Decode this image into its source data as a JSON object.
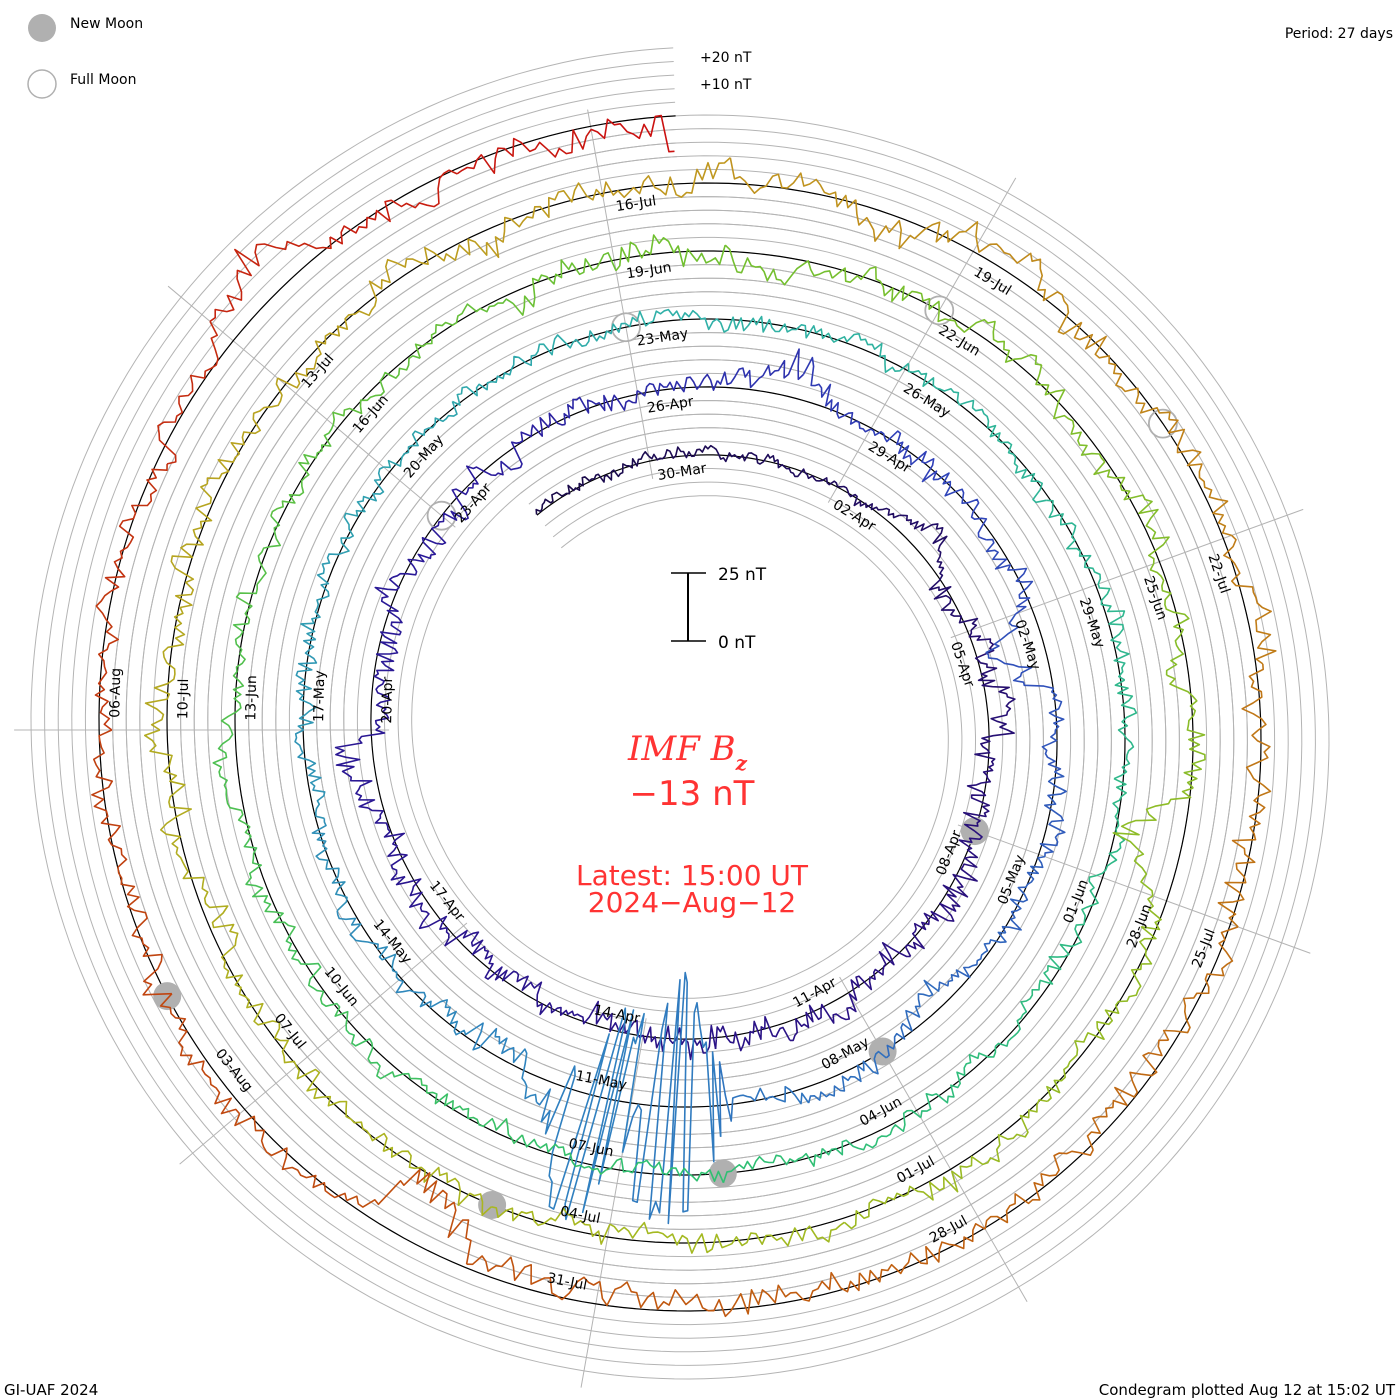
{
  "legend": {
    "new_moon_label": "New Moon",
    "full_moon_label": "Full Moon",
    "new_moon_color": "#b0b0b0",
    "full_moon_color": "#b0b0b0"
  },
  "period_label": "Period: 27 days",
  "credit": "GI-UAF 2024",
  "plotted": "Condegram plotted Aug 12 at 15:02 UT",
  "chart_data": {
    "type": "line",
    "subtype": "condegram-spiral",
    "title_main": "IMF B",
    "title_sub": "z",
    "latest_value": "−13 nT",
    "latest_time": "Latest: 15:00 UT",
    "latest_date": "2024−Aug−12",
    "period_days": 27,
    "start_date": "2024-03-28",
    "first_tick_date": "2024-03-30",
    "end": "2024-08-12 15:00",
    "units": "nT",
    "scale_bar": {
      "top_label": "25 nT",
      "bottom_label": "0 nT",
      "range": [
        0,
        25
      ]
    },
    "grid_labels": [
      "+20 nT",
      "+10 nT"
    ],
    "grid_step_nT": 5,
    "tick_interval_days": 3,
    "date_labels": [
      "30-Mar",
      "02-Apr",
      "05-Apr",
      "08-Apr",
      "11-Apr",
      "14-Apr",
      "17-Apr",
      "20-Apr",
      "23-Apr",
      "26-Apr",
      "29-Apr",
      "02-May",
      "05-May",
      "08-May",
      "11-May",
      "14-May",
      "17-May",
      "20-May",
      "23-May",
      "26-May",
      "29-May",
      "01-Jun",
      "04-Jun",
      "07-Jun",
      "10-Jun",
      "13-Jun",
      "16-Jun",
      "19-Jun",
      "22-Jun",
      "25-Jun",
      "28-Jun",
      "01-Jul",
      "04-Jul",
      "07-Jul",
      "10-Jul",
      "13-Jul",
      "16-Jul",
      "19-Jul",
      "22-Jul",
      "25-Jul",
      "28-Jul",
      "31-Jul",
      "03-Aug",
      "06-Aug"
    ],
    "new_moons_day_offset": [
      9,
      39,
      68,
      97,
      127
    ],
    "full_moons_day_offset": [
      24,
      54,
      84,
      113
    ],
    "color_stops": [
      {
        "day": -2,
        "color": "#1a0a4a"
      },
      {
        "day": 10,
        "color": "#2a1080"
      },
      {
        "day": 24,
        "color": "#2a1a9a"
      },
      {
        "day": 30,
        "color": "#3040b8"
      },
      {
        "day": 42,
        "color": "#3080c0"
      },
      {
        "day": 54,
        "color": "#30b0a8"
      },
      {
        "day": 68,
        "color": "#30c070"
      },
      {
        "day": 81,
        "color": "#70c030"
      },
      {
        "day": 96,
        "color": "#a8b820"
      },
      {
        "day": 108,
        "color": "#c09820"
      },
      {
        "day": 120,
        "color": "#c06010"
      },
      {
        "day": 128,
        "color": "#c04010"
      },
      {
        "day": 136,
        "color": "#cc0a10"
      }
    ],
    "activity_level_nT": [
      {
        "from_day": -2,
        "to_day": 5,
        "amp": 2
      },
      {
        "from_day": 5,
        "to_day": 26,
        "amp": 5
      },
      {
        "from_day": 26,
        "to_day": 40,
        "amp": 4
      },
      {
        "from_day": 40,
        "to_day": 44,
        "amp": 6
      },
      {
        "from_day": 44,
        "to_day": 80,
        "amp": 3.5
      },
      {
        "from_day": 80,
        "to_day": 100,
        "amp": 4.5
      },
      {
        "from_day": 100,
        "to_day": 136,
        "amp": 5
      }
    ],
    "disturbances": [
      {
        "day": 4.5,
        "peak_nT": 12
      },
      {
        "day": 20.5,
        "peak_nT": 14
      },
      {
        "day": 29,
        "peak_nT": 18
      },
      {
        "day": 33.5,
        "peak_nT": -20
      },
      {
        "day": 41.5,
        "peak_nT": -50
      },
      {
        "day": 42.3,
        "peak_nT": 45
      },
      {
        "day": 89.5,
        "peak_nT": -18
      },
      {
        "day": 124.5,
        "peak_nT": -25
      },
      {
        "day": 132.5,
        "peak_nT": 22
      }
    ]
  }
}
